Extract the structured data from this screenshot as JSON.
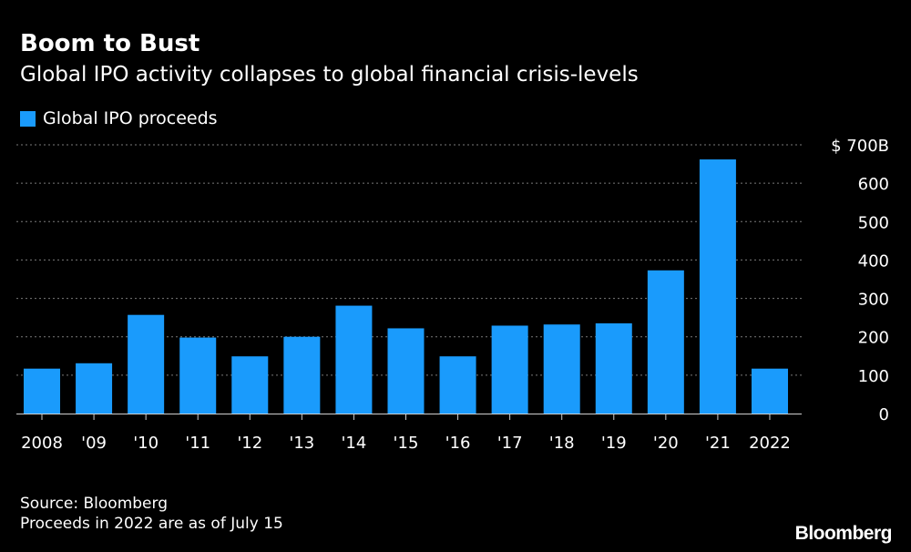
{
  "title": "Boom to Bust",
  "subtitle": "Global IPO activity collapses to global financial crisis-levels",
  "legend": {
    "label": "Global IPO proceeds",
    "color": "#1a9bfc"
  },
  "footer": {
    "source": "Source: Bloomberg",
    "note": "Proceeds in 2022 are as of July 15"
  },
  "brand": "Bloomberg",
  "chart_data": {
    "type": "bar",
    "categories": [
      "2008",
      "'09",
      "'10",
      "'11",
      "'12",
      "'13",
      "'14",
      "'15",
      "'16",
      "'17",
      "'18",
      "'19",
      "'20",
      "'21",
      "2022"
    ],
    "series": [
      {
        "name": "Global IPO proceeds",
        "color": "#1a9bfc",
        "values": [
          117,
          131,
          257,
          198,
          149,
          200,
          281,
          222,
          149,
          229,
          232,
          235,
          373,
          662,
          117
        ]
      }
    ],
    "y_ticks": [
      {
        "value": 0,
        "label": "0"
      },
      {
        "value": 100,
        "label": "100"
      },
      {
        "value": 200,
        "label": "200"
      },
      {
        "value": 300,
        "label": "300"
      },
      {
        "value": 400,
        "label": "400"
      },
      {
        "value": 500,
        "label": "500"
      },
      {
        "value": 600,
        "label": "600"
      },
      {
        "value": 700,
        "label": "$ 700B"
      }
    ],
    "ylim": [
      0,
      700
    ],
    "y_axis_side": "right",
    "grid": true,
    "grid_style": "dotted",
    "legend_position": "top-left"
  }
}
